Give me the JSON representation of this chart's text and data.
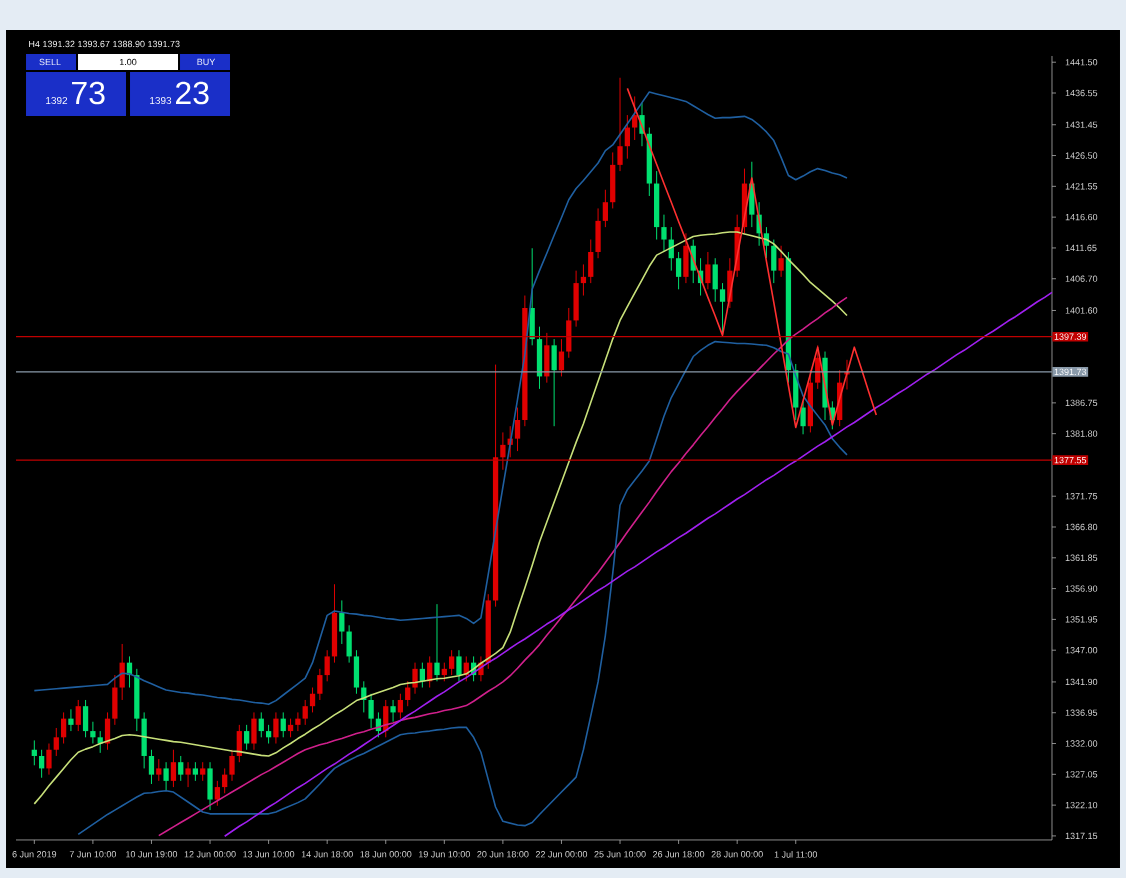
{
  "chart_data": {
    "type": "candlestick",
    "subtitle": "H4 1391.32 1393.67 1388.90 1391.73",
    "annotations": [
      "SELL",
      "1.00",
      "BUY",
      "1392",
      "73",
      "1393",
      "23"
    ],
    "categories": [
      "6 Jun 2019",
      null,
      null,
      null,
      null,
      null,
      null,
      null,
      "7 Jun 10:00",
      null,
      null,
      null,
      null,
      null,
      null,
      null,
      "10 Jun 19:00",
      null,
      null,
      null,
      null,
      null,
      null,
      null,
      "12 Jun 00:00",
      null,
      null,
      null,
      null,
      null,
      null,
      null,
      "13 Jun 10:00",
      null,
      null,
      null,
      null,
      null,
      null,
      null,
      "14 Jun 18:00",
      null,
      null,
      null,
      null,
      null,
      null,
      null,
      "18 Jun 00:00",
      null,
      null,
      null,
      null,
      null,
      null,
      null,
      "19 Jun 10:00",
      null,
      null,
      null,
      null,
      null,
      null,
      null,
      "20 Jun 18:00",
      null,
      null,
      null,
      null,
      null,
      null,
      null,
      "22 Jun 00:00",
      null,
      null,
      null,
      null,
      null,
      null,
      null,
      "25 Jun 10:00",
      null,
      null,
      null,
      null,
      null,
      null,
      null,
      "26 Jun 18:00",
      null,
      null,
      null,
      null,
      null,
      null,
      null,
      "28 Jun 00:00",
      null,
      null,
      null,
      null,
      null,
      null,
      null,
      "1 Jul 11:00",
      null,
      null,
      null,
      null,
      null,
      null,
      null,
      null,
      null,
      null,
      null,
      null,
      null,
      null,
      null,
      null,
      null,
      null,
      null,
      null,
      null,
      null,
      null,
      null,
      null,
      null,
      null,
      null,
      null,
      null,
      null,
      null,
      null,
      null,
      null
    ],
    "ylim": [
      1316.5,
      1442.5
    ],
    "yticks": [
      {
        "value": 1317.15,
        "label": "1317.15"
      },
      {
        "value": 1322.1,
        "label": "1322.10"
      },
      {
        "value": 1327.05,
        "label": "1327.05"
      },
      {
        "value": 1332.0,
        "label": "1332.00"
      },
      {
        "value": 1336.95,
        "label": "1336.95"
      },
      {
        "value": 1341.9,
        "label": "1341.90"
      },
      {
        "value": 1347.0,
        "label": "1347.00"
      },
      {
        "value": 1351.95,
        "label": "1351.95"
      },
      {
        "value": 1356.9,
        "label": "1356.90"
      },
      {
        "value": 1361.85,
        "label": "1361.85"
      },
      {
        "value": 1366.8,
        "label": "1366.80"
      },
      {
        "value": 1371.75,
        "label": "1371.75"
      },
      {
        "value": 1381.8,
        "label": "1381.80"
      },
      {
        "value": 1386.75,
        "label": "1386.75"
      },
      {
        "value": 1401.6,
        "label": "1401.60"
      },
      {
        "value": 1406.7,
        "label": "1406.70"
      },
      {
        "value": 1411.65,
        "label": "1411.65"
      },
      {
        "value": 1416.6,
        "label": "1416.60"
      },
      {
        "value": 1421.55,
        "label": "1421.55"
      },
      {
        "value": 1426.5,
        "label": "1426.50"
      },
      {
        "value": 1431.45,
        "label": "1431.45"
      },
      {
        "value": 1436.55,
        "label": "1436.55"
      },
      {
        "value": 1441.5,
        "label": "1441.50"
      }
    ],
    "ref_lines": [
      {
        "axis": "y",
        "value": 1397.39,
        "label": "1397.39",
        "color": "#c00000"
      },
      {
        "axis": "y",
        "value": 1377.55,
        "label": "1377.55",
        "color": "#c00000"
      },
      {
        "axis": "y",
        "value": 1391.73,
        "label": "1391.73",
        "color": "#8a9aaa"
      }
    ],
    "grid": false,
    "series": [
      {
        "type": "candlestick",
        "ohlc": [
          [
            1331,
            1332.5,
            1328.5,
            1330
          ],
          [
            1330,
            1331,
            1326.5,
            1328
          ],
          [
            1328,
            1332,
            1327,
            1331
          ],
          [
            1331,
            1334.5,
            1330,
            1333
          ],
          [
            1333,
            1337,
            1332,
            1336
          ],
          [
            1336,
            1337.5,
            1334,
            1335
          ],
          [
            1335,
            1339,
            1334,
            1338
          ],
          [
            1338,
            1339,
            1333,
            1334
          ],
          [
            1334,
            1335.5,
            1332,
            1333
          ],
          [
            1333,
            1334,
            1330.5,
            1332
          ],
          [
            1332,
            1337,
            1331,
            1336
          ],
          [
            1336,
            1343,
            1335,
            1341
          ],
          [
            1341,
            1348,
            1339,
            1345
          ],
          [
            1345,
            1346,
            1341,
            1343
          ],
          [
            1343,
            1344,
            1334,
            1336
          ],
          [
            1336,
            1337,
            1328,
            1330
          ],
          [
            1330,
            1331,
            1325.5,
            1327
          ],
          [
            1327,
            1329.5,
            1326,
            1328
          ],
          [
            1328,
            1329,
            1324.5,
            1326
          ],
          [
            1326,
            1331,
            1325,
            1329
          ],
          [
            1329,
            1330,
            1326,
            1327
          ],
          [
            1327,
            1329,
            1325,
            1328
          ],
          [
            1328,
            1329,
            1326,
            1327
          ],
          [
            1327,
            1329,
            1326,
            1328
          ],
          [
            1328,
            1329,
            1321.3,
            1323
          ],
          [
            1323,
            1326,
            1322,
            1325
          ],
          [
            1325,
            1328,
            1324,
            1327
          ],
          [
            1327,
            1331,
            1326,
            1330
          ],
          [
            1330,
            1335,
            1329,
            1334
          ],
          [
            1334,
            1335,
            1331,
            1332
          ],
          [
            1332,
            1337,
            1331,
            1336
          ],
          [
            1336,
            1337,
            1333,
            1334
          ],
          [
            1334,
            1335,
            1332,
            1333
          ],
          [
            1333,
            1337,
            1332,
            1336
          ],
          [
            1336,
            1337,
            1333,
            1334
          ],
          [
            1334,
            1336,
            1333,
            1335
          ],
          [
            1335,
            1337,
            1334,
            1336
          ],
          [
            1336,
            1339,
            1335,
            1338
          ],
          [
            1338,
            1341,
            1337,
            1340
          ],
          [
            1340,
            1344,
            1339,
            1343
          ],
          [
            1343,
            1347,
            1342,
            1346
          ],
          [
            1346,
            1357.6,
            1345,
            1353
          ],
          [
            1353,
            1355,
            1348,
            1350
          ],
          [
            1350,
            1351,
            1345,
            1346
          ],
          [
            1346,
            1347,
            1340,
            1341
          ],
          [
            1341,
            1342,
            1337,
            1339
          ],
          [
            1339,
            1340,
            1334.5,
            1336
          ],
          [
            1336,
            1337,
            1333,
            1334
          ],
          [
            1334,
            1339,
            1333,
            1338
          ],
          [
            1338,
            1339,
            1335.5,
            1337
          ],
          [
            1337,
            1340,
            1336,
            1339
          ],
          [
            1339,
            1342,
            1338,
            1341
          ],
          [
            1341,
            1345,
            1340,
            1344
          ],
          [
            1344,
            1345,
            1341,
            1342
          ],
          [
            1342,
            1346,
            1341,
            1345
          ],
          [
            1345,
            1354.4,
            1342,
            1343
          ],
          [
            1343,
            1345,
            1342,
            1344
          ],
          [
            1344,
            1347,
            1343,
            1346
          ],
          [
            1346,
            1347,
            1342,
            1343
          ],
          [
            1343,
            1346,
            1342,
            1345
          ],
          [
            1345,
            1346,
            1342,
            1343
          ],
          [
            1343,
            1346,
            1342,
            1345
          ],
          [
            1345,
            1356,
            1344,
            1355
          ],
          [
            1355,
            1392.9,
            1354,
            1378
          ],
          [
            1378,
            1382,
            1376,
            1380
          ],
          [
            1380,
            1383,
            1378,
            1381
          ],
          [
            1381,
            1386,
            1379,
            1384
          ],
          [
            1384,
            1404,
            1383,
            1402
          ],
          [
            1402,
            1411.6,
            1396,
            1397
          ],
          [
            1397,
            1399,
            1389,
            1391
          ],
          [
            1391,
            1398,
            1390,
            1396
          ],
          [
            1396,
            1397,
            1383,
            1392
          ],
          [
            1392,
            1397,
            1391,
            1395
          ],
          [
            1395,
            1402,
            1394,
            1400
          ],
          [
            1400,
            1408,
            1399,
            1406
          ],
          [
            1406,
            1409,
            1404,
            1407
          ],
          [
            1407,
            1413,
            1406,
            1411
          ],
          [
            1411,
            1418,
            1410,
            1416
          ],
          [
            1416,
            1421,
            1415,
            1419
          ],
          [
            1419,
            1427,
            1418,
            1425
          ],
          [
            1425,
            1439,
            1424,
            1428
          ],
          [
            1428,
            1433,
            1426,
            1431
          ],
          [
            1431,
            1436,
            1429,
            1433
          ],
          [
            1433,
            1435,
            1428,
            1430
          ],
          [
            1430,
            1431,
            1420,
            1422
          ],
          [
            1422,
            1424,
            1413,
            1415
          ],
          [
            1415,
            1417,
            1411,
            1413
          ],
          [
            1413,
            1415,
            1408,
            1410
          ],
          [
            1410,
            1411,
            1405,
            1407
          ],
          [
            1407,
            1414,
            1406,
            1412
          ],
          [
            1412,
            1413,
            1406,
            1408
          ],
          [
            1408,
            1410,
            1404,
            1406
          ],
          [
            1406,
            1411,
            1405,
            1409
          ],
          [
            1409,
            1410,
            1403,
            1405
          ],
          [
            1405,
            1406,
            1398,
            1403
          ],
          [
            1403,
            1410,
            1402,
            1408
          ],
          [
            1408,
            1417,
            1407,
            1415
          ],
          [
            1415,
            1424.4,
            1414,
            1422
          ],
          [
            1422,
            1425.5,
            1415,
            1417
          ],
          [
            1417,
            1419,
            1412,
            1414
          ],
          [
            1414,
            1415,
            1410,
            1412
          ],
          [
            1412,
            1413,
            1406,
            1408
          ],
          [
            1408,
            1412,
            1407,
            1410
          ],
          [
            1410,
            1411,
            1390,
            1392
          ],
          [
            1392,
            1393,
            1384,
            1386
          ],
          [
            1386,
            1387,
            1381.7,
            1383
          ],
          [
            1383,
            1392,
            1382,
            1390
          ],
          [
            1390,
            1396,
            1389,
            1394
          ],
          [
            1394,
            1395,
            1384,
            1386
          ],
          [
            1386,
            1387,
            1382.5,
            1384
          ],
          [
            1384,
            1392,
            1383,
            1390
          ],
          [
            1391.32,
            1393.67,
            1388.9,
            1391.73
          ],
          null,
          null,
          null,
          null,
          null,
          null,
          null,
          null,
          null,
          null,
          null,
          null,
          null,
          null,
          null,
          null,
          null,
          null,
          null,
          null,
          null,
          null,
          null,
          null,
          null,
          null,
          null,
          null
        ],
        "colors": [
          "#00e070",
          "#00e070",
          "#e00000",
          "#e00000",
          "#e00000",
          "#00e070",
          "#e00000",
          "#00e070",
          "#00e070",
          "#00e070",
          "#e00000",
          "#e00000",
          "#e00000",
          "#00e070",
          "#00e070",
          "#00e070",
          "#00e070",
          "#e00000",
          "#00e070",
          "#e00000",
          "#00e070",
          "#e00000",
          "#00e070",
          "#e00000",
          "#00e070",
          "#e00000",
          "#e00000",
          "#e00000",
          "#e00000",
          "#00e070",
          "#e00000",
          "#00e070",
          "#00e070",
          "#e00000",
          "#00e070",
          "#e00000",
          "#e00000",
          "#e00000",
          "#e00000",
          "#e00000",
          "#e00000",
          "#e00000",
          "#00e070",
          "#00e070",
          "#00e070",
          "#00e070",
          "#00e070",
          "#00e070",
          "#e00000",
          "#00e070",
          "#e00000",
          "#e00000",
          "#e00000",
          "#00e070",
          "#e00000",
          "#00e070",
          "#e00000",
          "#e00000",
          "#00e070",
          "#e00000",
          "#00e070",
          "#e00000",
          "#e00000",
          "#e00000",
          "#e00000",
          "#e00000",
          "#e00000",
          "#e00000",
          "#00e070",
          "#00e070",
          "#e00000",
          "#00e070",
          "#e00000",
          "#e00000",
          "#e00000",
          "#e00000",
          "#e00000",
          "#e00000",
          "#e00000",
          "#e00000",
          "#e00000",
          "#e00000",
          "#e00000",
          "#00e070",
          "#00e070",
          "#00e070",
          "#00e070",
          "#00e070",
          "#00e070",
          "#e00000",
          "#00e070",
          "#00e070",
          "#e00000",
          "#00e070",
          "#00e070",
          "#e00000",
          "#e00000",
          "#e00000",
          "#00e070",
          "#00e070",
          "#00e070",
          "#00e070",
          "#e00000",
          "#00e070",
          "#00e070",
          "#00e070",
          "#e00000",
          "#e00000",
          "#00e070",
          "#00e070",
          "#e00000",
          "#e00000",
          null,
          null,
          null,
          null,
          null,
          null,
          null,
          null,
          null,
          null,
          null,
          null,
          null,
          null,
          null,
          null,
          null,
          null,
          null,
          null,
          null,
          null,
          null,
          null,
          null,
          null,
          null,
          null
        ]
      },
      {
        "type": "line",
        "color": "#c8e07a",
        "values": [
          1322.3,
          1323.7,
          1325.2,
          1326.6,
          1328.0,
          1329.4,
          1330.6,
          1331.1,
          1331.5,
          1332.0,
          1332.4,
          1332.8,
          1333.3,
          1333.4,
          1333.3,
          1333.1,
          1332.9,
          1332.7,
          1332.5,
          1332.3,
          1332.2,
          1332.0,
          1331.8,
          1331.6,
          1331.4,
          1331.2,
          1331.0,
          1330.8,
          1330.7,
          1330.5,
          1330.3,
          1330.1,
          1330.0,
          1330.5,
          1331.3,
          1332.0,
          1332.8,
          1333.5,
          1334.3,
          1335.0,
          1335.8,
          1336.6,
          1337.3,
          1338.1,
          1338.9,
          1339.3,
          1339.8,
          1340.2,
          1340.6,
          1341.0,
          1341.5,
          1341.7,
          1341.8,
          1342.0,
          1342.2,
          1342.4,
          1342.5,
          1342.7,
          1342.9,
          1343.2,
          1344.0,
          1344.9,
          1345.7,
          1346.5,
          1347.4,
          1349.9,
          1353.5,
          1357.0,
          1360.6,
          1364.4,
          1367.6,
          1370.8,
          1374.0,
          1377.2,
          1380.4,
          1383.4,
          1386.8,
          1390.2,
          1393.6,
          1397.0,
          1400.0,
          1402.2,
          1404.4,
          1406.5,
          1408.7,
          1410.5,
          1411.1,
          1411.7,
          1412.3,
          1412.9,
          1413.5,
          1413.7,
          1413.8,
          1413.9,
          1414.1,
          1414.2,
          1414.2,
          1413.9,
          1413.6,
          1413.3,
          1413.0,
          1412.3,
          1411.1,
          1409.8,
          1408.6,
          1407.4,
          1406.1,
          1405.1,
          1404.1,
          1403.1,
          1402.0,
          1400.8,
          null,
          null,
          null,
          null,
          null,
          null,
          null,
          null,
          null,
          null,
          null,
          null,
          null,
          null,
          null,
          null,
          null,
          null,
          null,
          null,
          null,
          null,
          null,
          null,
          null,
          null,
          null,
          null
        ]
      },
      {
        "type": "line",
        "color": "#d0208c",
        "values": [
          null,
          null,
          null,
          null,
          null,
          null,
          null,
          null,
          null,
          null,
          null,
          null,
          null,
          null,
          null,
          null,
          null,
          1317.2,
          1317.9,
          1318.6,
          1319.3,
          1320.0,
          1320.7,
          1321.4,
          1322.1,
          1322.8,
          1323.5,
          1324.2,
          1324.9,
          1325.6,
          1326.3,
          1327.0,
          1327.6,
          1328.3,
          1329.0,
          1329.7,
          1330.4,
          1331.0,
          1331.4,
          1331.8,
          1332.1,
          1332.5,
          1332.8,
          1333.2,
          1333.6,
          1333.9,
          1334.3,
          1334.6,
          1335.0,
          1335.3,
          1335.7,
          1336.0,
          1336.2,
          1336.5,
          1336.8,
          1337.0,
          1337.3,
          1337.5,
          1337.8,
          1338.1,
          1338.8,
          1339.6,
          1340.4,
          1341.1,
          1341.9,
          1342.9,
          1344.1,
          1345.4,
          1346.6,
          1347.9,
          1349.4,
          1350.8,
          1352.3,
          1353.7,
          1355.2,
          1356.6,
          1358.1,
          1359.5,
          1361.1,
          1362.7,
          1364.3,
          1366.0,
          1367.6,
          1369.2,
          1370.8,
          1372.5,
          1374.1,
          1375.7,
          1377.1,
          1378.6,
          1380.0,
          1381.5,
          1382.9,
          1384.4,
          1385.8,
          1387.3,
          1388.6,
          1389.8,
          1391.0,
          1392.2,
          1393.4,
          1394.6,
          1395.7,
          1396.9,
          1397.8,
          1398.6,
          1399.5,
          1400.3,
          1401.2,
          1402.0,
          1402.9,
          1403.7,
          null,
          null,
          null,
          null,
          null,
          null,
          null,
          null,
          null,
          null,
          null,
          null,
          null,
          null,
          null,
          null,
          null,
          null,
          null,
          null,
          null,
          null,
          null,
          null,
          null,
          null,
          null,
          null
        ]
      },
      {
        "type": "line",
        "color": "#1f5fa0",
        "values": [
          1340.5,
          1340.6,
          1340.7,
          1340.8,
          1340.9,
          1341.0,
          1341.1,
          1341.2,
          1341.3,
          1341.4,
          1341.5,
          1342.5,
          1343.3,
          1343.2,
          1342.7,
          1342.1,
          1341.6,
          1341.1,
          1340.6,
          1340.4,
          1340.2,
          1340.1,
          1339.9,
          1339.8,
          1339.6,
          1339.4,
          1339.3,
          1339.1,
          1339.0,
          1338.8,
          1338.6,
          1338.5,
          1338.3,
          1338.9,
          1339.8,
          1340.7,
          1341.6,
          1342.5,
          1345.0,
          1348.8,
          1352.6,
          1353.3,
          1353.1,
          1352.9,
          1352.8,
          1352.6,
          1352.5,
          1352.3,
          1352.1,
          1352.0,
          1351.8,
          1351.9,
          1352.0,
          1352.1,
          1352.2,
          1352.3,
          1352.4,
          1352.5,
          1352.6,
          1352.1,
          1351.3,
          1352.2,
          1359.2,
          1366.2,
          1373.2,
          1380.2,
          1387.3,
          1394.5,
          1405.0,
          1408.0,
          1410.8,
          1413.7,
          1416.5,
          1419.4,
          1421.2,
          1422.5,
          1423.9,
          1425.3,
          1427.3,
          1428.2,
          1429.9,
          1431.6,
          1433.3,
          1435.0,
          1436.7,
          1436.4,
          1436.1,
          1435.8,
          1435.5,
          1435.2,
          1434.5,
          1433.8,
          1433.1,
          1432.5,
          1432.6,
          1432.6,
          1432.7,
          1432.8,
          1432.3,
          1431.4,
          1430.3,
          1428.9,
          1426.2,
          1423.3,
          1422.6,
          1423.2,
          1423.9,
          1424.4,
          1424.1,
          1423.7,
          1423.4,
          1422.9,
          null,
          null,
          null,
          null,
          null,
          null,
          null,
          null,
          null,
          null,
          null,
          null,
          null,
          null,
          null,
          null,
          null,
          null,
          null,
          null,
          null,
          null,
          null,
          null,
          null,
          null,
          null,
          null
        ]
      },
      {
        "type": "line",
        "color": "#1f5fa0",
        "values": [
          null,
          null,
          null,
          null,
          null,
          null,
          1317.4,
          1318.2,
          1319.0,
          1319.8,
          1320.6,
          1321.3,
          1322.0,
          1322.7,
          1323.4,
          1324.0,
          1324.1,
          1324.3,
          1324.4,
          1324.2,
          1323.4,
          1322.6,
          1321.8,
          1321.0,
          1320.7,
          1320.7,
          1320.7,
          1320.7,
          1320.7,
          1320.7,
          1320.7,
          1320.7,
          1320.7,
          1321.0,
          1321.5,
          1322.0,
          1322.5,
          1323.1,
          1324.3,
          1325.5,
          1326.8,
          1328.0,
          1328.7,
          1329.3,
          1329.9,
          1330.4,
          1331.0,
          1331.6,
          1332.2,
          1332.8,
          1333.4,
          1333.6,
          1333.7,
          1333.9,
          1334.0,
          1334.2,
          1334.3,
          1334.5,
          1334.6,
          1334.6,
          1333.0,
          1330.6,
          1326.2,
          1321.8,
          1319.5,
          1319.2,
          1318.9,
          1318.8,
          1319.3,
          1320.6,
          1321.8,
          1323.0,
          1324.2,
          1325.4,
          1326.6,
          1331.0,
          1336.4,
          1341.9,
          1349.4,
          1359.3,
          1370.3,
          1372.8,
          1374.3,
          1375.8,
          1377.4,
          1381.0,
          1384.6,
          1387.6,
          1389.8,
          1392.0,
          1394.2,
          1395.2,
          1396.0,
          1396.6,
          1396.5,
          1396.4,
          1396.3,
          1396.3,
          1396.2,
          1396.1,
          1396.0,
          1395.6,
          1395.0,
          1394.6,
          1391.1,
          1387.9,
          1386.2,
          1384.7,
          1383.2,
          1381.0,
          1379.6,
          1378.4,
          null,
          null,
          null,
          null,
          null,
          null,
          null,
          null,
          null,
          null,
          null,
          null,
          null,
          null,
          null,
          null,
          null,
          null,
          null,
          null,
          null,
          null,
          null,
          null,
          null,
          null,
          null,
          null
        ]
      },
      {
        "type": "line",
        "color": "#a020f0",
        "values": [
          null,
          null,
          null,
          null,
          null,
          null,
          null,
          null,
          null,
          null,
          null,
          null,
          null,
          null,
          null,
          null,
          null,
          null,
          null,
          null,
          null,
          null,
          null,
          null,
          null,
          null,
          1317.1,
          1317.9,
          1318.7,
          1319.4,
          1320.2,
          1321.0,
          1321.8,
          1322.5,
          1323.3,
          1324.1,
          1324.9,
          1325.6,
          1326.4,
          1327.2,
          1328.0,
          1328.7,
          1329.5,
          1330.3,
          1331.0,
          1331.8,
          1332.6,
          1333.4,
          1334.1,
          1334.9,
          1335.7,
          1336.5,
          1337.2,
          1338.0,
          1338.8,
          1339.6,
          1340.3,
          1341.1,
          1341.9,
          1342.6,
          1343.4,
          1344.2,
          1345.0,
          1345.7,
          1346.5,
          1347.3,
          1348.1,
          1348.8,
          1349.6,
          1350.4,
          1351.2,
          1351.9,
          1352.7,
          1353.5,
          1354.2,
          1355.0,
          1355.8,
          1356.6,
          1357.3,
          1358.1,
          1358.9,
          1359.7,
          1360.4,
          1361.2,
          1362.0,
          1362.8,
          1363.5,
          1364.3,
          1365.1,
          1365.8,
          1366.6,
          1367.4,
          1368.2,
          1368.9,
          1369.7,
          1370.5,
          1371.3,
          1372.0,
          1372.8,
          1373.6,
          1374.4,
          1375.1,
          1375.9,
          1376.7,
          1377.4,
          1378.2,
          1379.0,
          1379.8,
          1380.5,
          1381.3,
          1382.1,
          1382.9,
          1383.6,
          1384.4,
          1385.2,
          1386.0,
          1386.7,
          1387.5,
          1388.3,
          1389.0,
          1389.8,
          1390.6,
          1391.4,
          1392.1,
          1392.9,
          1393.7,
          1394.5,
          1395.2,
          1396.0,
          1396.8,
          1397.6,
          1398.3,
          1399.1,
          1399.9,
          1400.6,
          1401.4,
          1402.2,
          1403.0,
          1403.7,
          1404.5
        ]
      },
      {
        "type": "line",
        "color": "#ff3030",
        "values": [
          null,
          null,
          null,
          null,
          null,
          null,
          null,
          null,
          null,
          null,
          null,
          null,
          null,
          null,
          null,
          null,
          null,
          null,
          null,
          null,
          null,
          null,
          null,
          null,
          null,
          null,
          null,
          null,
          null,
          null,
          null,
          null,
          null,
          null,
          null,
          null,
          null,
          null,
          null,
          null,
          null,
          null,
          null,
          null,
          null,
          null,
          null,
          null,
          null,
          null,
          null,
          null,
          null,
          null,
          null,
          null,
          null,
          null,
          null,
          null,
          null,
          null,
          null,
          null,
          null,
          null,
          null,
          null,
          null,
          null,
          null,
          null,
          null,
          null,
          null,
          null,
          null,
          null,
          null,
          null,
          null,
          1437.3,
          1434.2,
          1431.2,
          1428.1,
          1425.1,
          1422.0,
          1419.0,
          1415.9,
          1412.9,
          1409.8,
          1406.8,
          1403.7,
          1400.7,
          1397.6,
          1403.9,
          1410.3,
          1416.6,
          1422.9,
          1416.2,
          1409.5,
          1402.9,
          1396.2,
          1389.5,
          1382.8,
          1387.1,
          1391.4,
          1395.7,
          1389.5,
          1383.2,
          1387.4,
          1391.5,
          1395.7,
          1392.1,
          1388.4,
          1384.8,
          null,
          null,
          null,
          null,
          null,
          null,
          null,
          null,
          null,
          null,
          null,
          null,
          null,
          null,
          null,
          null,
          null,
          null,
          null,
          null,
          null,
          null,
          null,
          null
        ]
      }
    ]
  }
}
